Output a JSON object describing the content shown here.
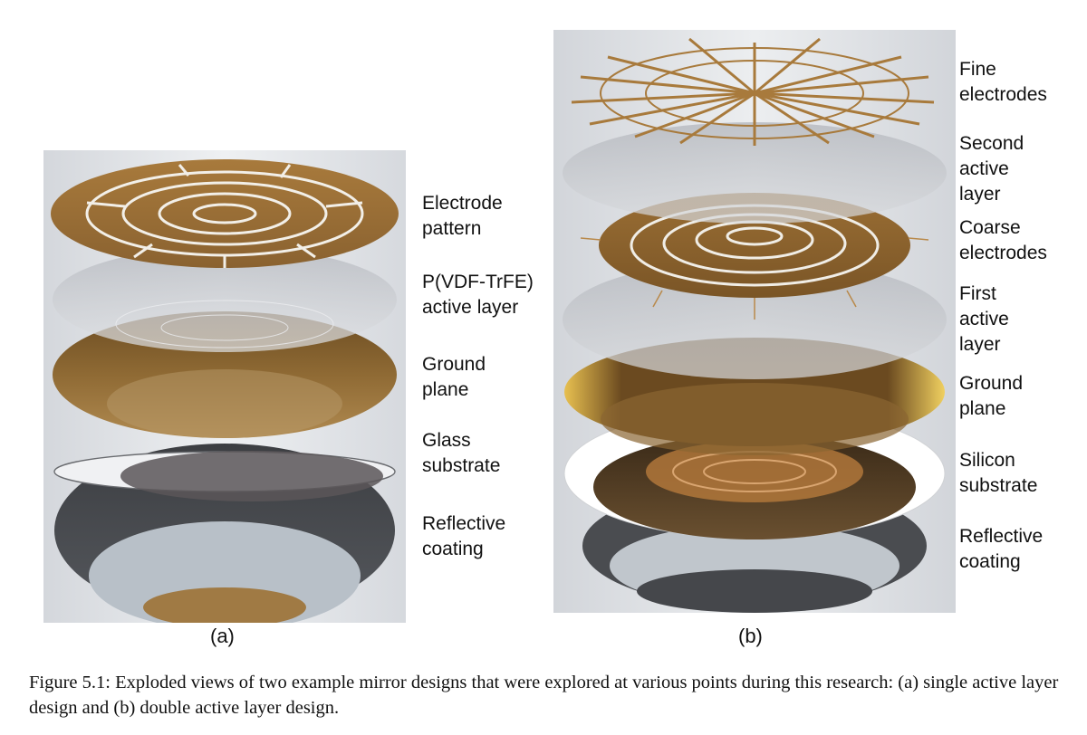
{
  "figure": {
    "panel_a": {
      "tag": "(a)",
      "labels": [
        "Electrode\npattern",
        "P(VDF-TrFE)\nactive layer",
        "Ground\nplane",
        "Glass\nsubstrate",
        "Reflective\ncoating"
      ]
    },
    "panel_b": {
      "tag": "(b)",
      "labels": [
        "Fine\nelectrodes",
        "Second\nactive\nlayer",
        "Coarse\nelectrodes",
        "First\nactive\nlayer",
        "Ground\nplane",
        "Silicon\nsubstrate",
        "Reflective\ncoating"
      ]
    },
    "caption": "Figure 5.1: Exploded views of two example mirror designs that were explored at various points during this research: (a) single active layer design and (b) double active layer design.",
    "colors": {
      "gold": "#a87a3c",
      "gold_dark": "#7a5526",
      "silver": "#c9ccd0",
      "dark_gray": "#4a4c50",
      "panel_bg": "#e3e5e8"
    }
  }
}
